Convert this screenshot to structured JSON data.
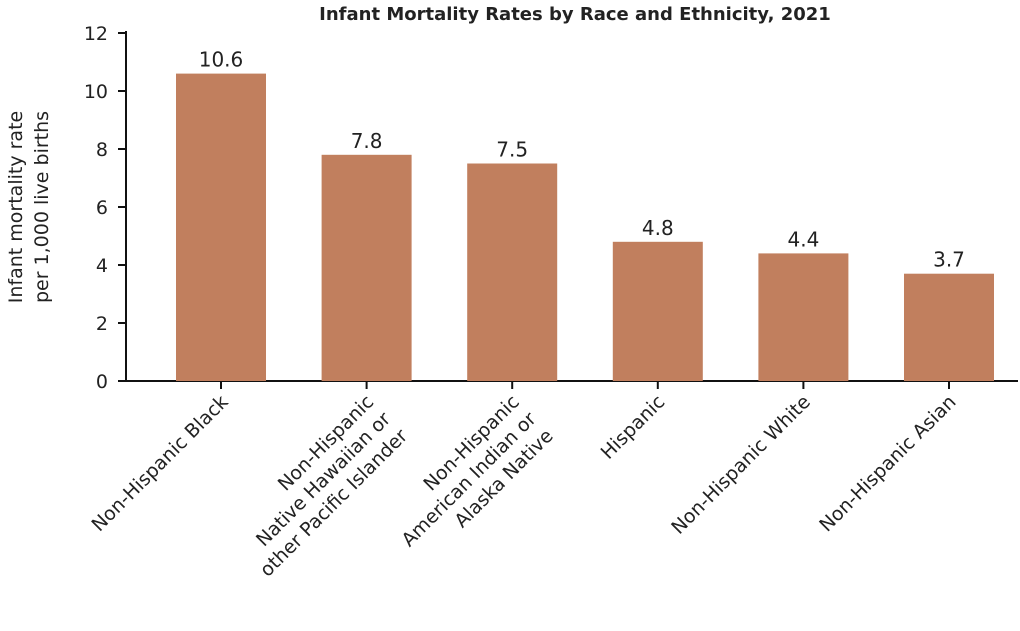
{
  "chart_data": {
    "type": "bar",
    "title": "Infant Mortality Rates by Race and Ethnicity, 2021",
    "xlabel": "",
    "ylabel": [
      "Infant mortality rate",
      "per 1,000 live births"
    ],
    "categories": [
      [
        "Non-Hispanic Black"
      ],
      [
        "Non-Hispanic",
        "Native Hawaiian or",
        "other Pacific Islander"
      ],
      [
        "Non-Hispanic",
        "American Indian or",
        "Alaska Native"
      ],
      [
        "Hispanic"
      ],
      [
        "Non-Hispanic White"
      ],
      [
        "Non-Hispanic Asian"
      ]
    ],
    "values": [
      10.6,
      7.8,
      7.5,
      4.8,
      4.4,
      3.7
    ],
    "data_labels": [
      "10.6",
      "7.8",
      "7.5",
      "4.8",
      "4.4",
      "3.7"
    ],
    "ylim": [
      0,
      12
    ],
    "yticks": [
      0,
      2,
      4,
      6,
      8,
      10,
      12
    ],
    "grid": false,
    "bar_color": "#C17F5E"
  }
}
